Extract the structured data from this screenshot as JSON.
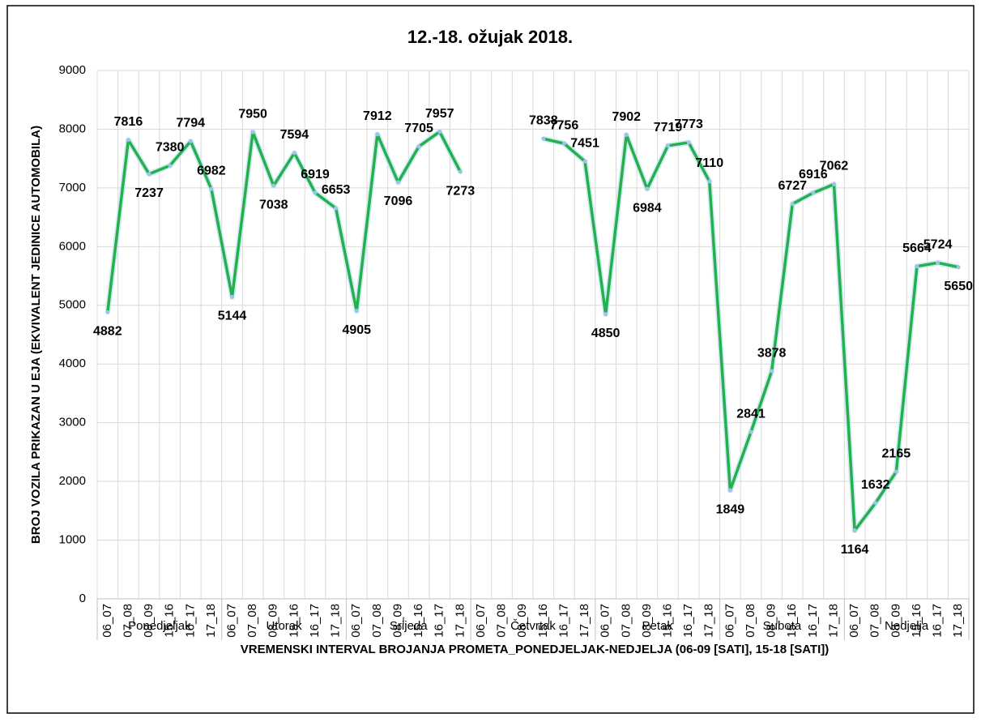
{
  "chart_data": {
    "type": "line",
    "title": "12.-18. ožujak 2018.",
    "x_label": "VREMENSKI INTERVAL BROJANJA PROMETA_PONEDJELJAK-NEDJELJA  (06-09 [SATI], 15-18 [SATI])",
    "y_label": "BROJ VOZILA PRIKAZAN U EJA (EKVIVALENT JEDINICE AUTOMOBILA)",
    "groups": [
      "Ponedjeljak",
      "Utorak",
      "Srijeda",
      "Četvrtak",
      "Petak",
      "Subota",
      "Nedjelja"
    ],
    "categories": [
      "06_07",
      "07_08",
      "08_09",
      "15_16",
      "16_17",
      "17_18",
      "06_07",
      "07_08",
      "08_09",
      "15_16",
      "16_17",
      "17_18",
      "06_07",
      "07_08",
      "08_09",
      "15_16",
      "16_17",
      "17_18",
      "06_07",
      "07_08",
      "08_09",
      "15_16",
      "16_17",
      "17_18",
      "06_07",
      "07_08",
      "08_09",
      "15_16",
      "16_17",
      "17_18",
      "06_07",
      "07_08",
      "08_09",
      "15_16",
      "16_17",
      "17_18",
      "06_07",
      "07_08",
      "08_09",
      "15_16",
      "16_17",
      "17_18"
    ],
    "values": [
      4882,
      7816,
      7237,
      7380,
      7794,
      6982,
      5144,
      7950,
      7038,
      7594,
      6919,
      6653,
      4905,
      7912,
      7096,
      7705,
      7957,
      7273,
      null,
      null,
      null,
      7838,
      7756,
      7451,
      4850,
      7902,
      6984,
      7719,
      7773,
      7110,
      1849,
      2841,
      3878,
      6727,
      6916,
      7062,
      1164,
      1632,
      2165,
      5664,
      5724,
      5650
    ],
    "color": "#22b14c",
    "ylim": [
      0,
      9000
    ],
    "yticks": [
      0,
      1000,
      2000,
      3000,
      4000,
      5000,
      6000,
      7000,
      8000,
      9000
    ],
    "grid": true
  }
}
